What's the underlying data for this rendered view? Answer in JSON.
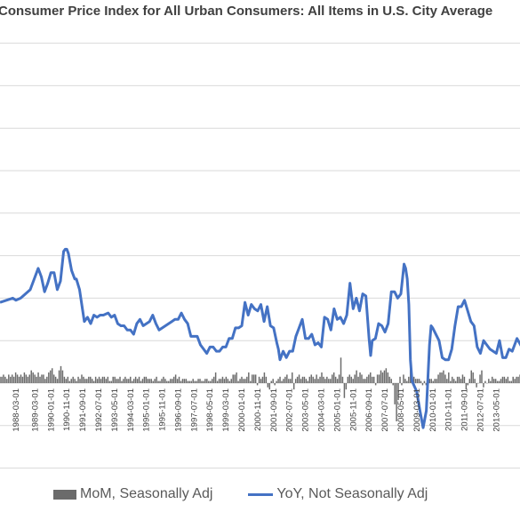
{
  "chart_data": {
    "type": "bar+line",
    "title": "Consumer Price Index for All Urban Consumers: All Items in U.S. City Average",
    "y_zero_gridline": true,
    "grid": "horizontal",
    "legend_position": "bottom",
    "colors": {
      "mom": "#6b6b6b",
      "yoy": "#4472c4",
      "grid": "#d9d9d9"
    },
    "x_tick_labels": [
      "1988-03-01",
      "1989-03-01",
      "1990-01-01",
      "1990-11-01",
      "1991-09-01",
      "1992-07-01",
      "1993-05-01",
      "1994-03-01",
      "1995-01-01",
      "1995-11-01",
      "1996-09-01",
      "1997-07-01",
      "1998-05-01",
      "1999-03-01",
      "2000-01-01",
      "2000-11-01",
      "2001-09-01",
      "2002-07-01",
      "2003-05-01",
      "2004-03-01",
      "2005-01-01",
      "2005-11-01",
      "2006-09-01",
      "2007-07-01",
      "2008-05-01",
      "2009-03-01",
      "2010-01-01",
      "2010-11-01",
      "2011-09-01",
      "2012-07-01",
      "2013-05-01"
    ],
    "series": [
      {
        "name": "MoM, Seasonally Adj",
        "kind": "bar",
        "x_start": "1987-05-01",
        "x_end": "2014-09-01",
        "values": [
          0.3,
          0.3,
          0.4,
          0.3,
          0.2,
          0.4,
          0.3,
          0.4,
          0.3,
          0.5,
          0.4,
          0.3,
          0.4,
          0.3,
          0.5,
          0.4,
          0.3,
          0.4,
          0.6,
          0.5,
          0.4,
          0.3,
          0.5,
          0.3,
          0.4,
          0.4,
          0.2,
          0.3,
          0.5,
          0.6,
          0.7,
          0.4,
          0.3,
          0.2,
          0.6,
          0.8,
          0.6,
          0.3,
          0.2,
          0.3,
          0.1,
          0.2,
          0.3,
          0.2,
          0.1,
          0.3,
          0.2,
          0.4,
          0.3,
          0.2,
          0.2,
          0.3,
          0.3,
          0.2,
          0.1,
          0.3,
          0.2,
          0.3,
          0.2,
          0.3,
          0.3,
          0.2,
          0.3,
          0.1,
          0.1,
          0.3,
          0.3,
          0.2,
          0.2,
          0.3,
          0.1,
          0.2,
          0.3,
          0.2,
          0.2,
          0.3,
          0.1,
          0.2,
          0.3,
          0.2,
          0.3,
          0.1,
          0.2,
          0.3,
          0.3,
          0.2,
          0.2,
          0.2,
          0.1,
          0.2,
          0.3,
          0.1,
          0.1,
          0.2,
          0.3,
          0.2,
          0.1,
          0.1,
          0.2,
          0.2,
          0.3,
          0.4,
          0.2,
          0.3,
          0.1,
          0.2,
          0.2,
          0.2,
          0.1,
          0.1,
          0.1,
          0.2,
          0.1,
          0.1,
          0.2,
          0.2,
          0.1,
          0.1,
          0.2,
          0.2,
          0.1,
          0.1,
          0.2,
          0.3,
          0.5,
          0.1,
          0.2,
          0.2,
          0.3,
          0.2,
          0.3,
          0.2,
          0.1,
          0.2,
          0.4,
          0.4,
          0.5,
          0.1,
          0.2,
          0.3,
          0.2,
          0.2,
          0.3,
          0.5,
          0.1,
          0.4,
          0.4,
          0.4,
          -0.1,
          0.3,
          0.2,
          0.3,
          0.5,
          0.3,
          -0.2,
          -0.3,
          0.1,
          0.2,
          -0.1,
          0.1,
          0.2,
          0.3,
          0.1,
          0.2,
          0.3,
          0.4,
          0.2,
          0.2,
          0.5,
          -0.3,
          0.2,
          0.3,
          0.4,
          0.2,
          0.3,
          0.3,
          0.2,
          0.1,
          0.3,
          0.4,
          0.3,
          0.2,
          0.4,
          0.2,
          0.3,
          0.5,
          0.3,
          0.2,
          0.3,
          0.2,
          0.2,
          0.4,
          0.5,
          0.3,
          0.2,
          0.4,
          1.2,
          0.3,
          -0.7,
          -0.3,
          0.3,
          0.4,
          0.3,
          0.2,
          0.4,
          0.6,
          0.3,
          0.5,
          0.4,
          0.2,
          0.2,
          0.3,
          0.4,
          0.5,
          0.3,
          0.3,
          -0.1,
          0.4,
          0.4,
          0.6,
          0.5,
          0.6,
          0.7,
          0.5,
          0.3,
          0.2,
          -0.1,
          -1.0,
          -1.8,
          -0.8,
          0.3,
          -0.1,
          0.4,
          0.2,
          0.1,
          0.3,
          0.8,
          0.1,
          0.3,
          0.2,
          0.2,
          0.2,
          0.1,
          -0.1,
          0.1,
          -0.1,
          -0.2,
          0.2,
          0.2,
          0.1,
          0.2,
          0.2,
          0.4,
          0.5,
          0.5,
          0.6,
          0.4,
          0.2,
          0.5,
          0.1,
          0.3,
          0.2,
          0.1,
          0.3,
          0.3,
          0.2,
          0.4,
          0.3,
          -0.3,
          -0.1,
          0.2,
          0.6,
          0.5,
          0.2,
          -0.2,
          0.0,
          0.4,
          0.6,
          -0.2,
          0.1,
          0.0,
          0.2,
          0.1,
          0.3,
          0.2,
          0.2,
          0.1,
          0.1,
          0.2,
          0.3,
          0.3,
          0.2,
          0.3,
          0.1,
          0.1,
          0.3,
          0.2,
          0.3,
          0.3,
          0.4,
          0.3
        ]
      },
      {
        "name": "YoY, Not Seasonally Adj",
        "kind": "line",
        "points": [
          [
            "1987-05-01",
            3.8
          ],
          [
            "1988-01-01",
            4.0
          ],
          [
            "1988-03-01",
            3.9
          ],
          [
            "1988-06-01",
            4.0
          ],
          [
            "1988-09-01",
            4.2
          ],
          [
            "1988-12-01",
            4.4
          ],
          [
            "1989-03-01",
            5.0
          ],
          [
            "1989-05-01",
            5.4
          ],
          [
            "1989-07-01",
            5.0
          ],
          [
            "1989-09-01",
            4.3
          ],
          [
            "1989-11-01",
            4.7
          ],
          [
            "1990-01-01",
            5.2
          ],
          [
            "1990-03-01",
            5.2
          ],
          [
            "1990-05-01",
            4.4
          ],
          [
            "1990-07-01",
            4.8
          ],
          [
            "1990-09-01",
            6.2
          ],
          [
            "1990-10-01",
            6.3
          ],
          [
            "1990-11-01",
            6.3
          ],
          [
            "1990-12-01",
            6.1
          ],
          [
            "1991-02-01",
            5.3
          ],
          [
            "1991-04-01",
            4.9
          ],
          [
            "1991-05-01",
            4.9
          ],
          [
            "1991-07-01",
            4.4
          ],
          [
            "1991-09-01",
            3.4
          ],
          [
            "1991-10-01",
            2.9
          ],
          [
            "1991-12-01",
            3.1
          ],
          [
            "1992-02-01",
            2.8
          ],
          [
            "1992-04-01",
            3.2
          ],
          [
            "1992-06-01",
            3.1
          ],
          [
            "1992-08-01",
            3.2
          ],
          [
            "1992-10-01",
            3.2
          ],
          [
            "1993-01-01",
            3.3
          ],
          [
            "1993-03-01",
            3.1
          ],
          [
            "1993-05-01",
            3.2
          ],
          [
            "1993-07-01",
            2.8
          ],
          [
            "1993-09-01",
            2.7
          ],
          [
            "1993-11-01",
            2.7
          ],
          [
            "1994-01-01",
            2.5
          ],
          [
            "1994-03-01",
            2.5
          ],
          [
            "1994-05-01",
            2.3
          ],
          [
            "1994-07-01",
            2.8
          ],
          [
            "1994-09-01",
            3.0
          ],
          [
            "1994-11-01",
            2.7
          ],
          [
            "1995-01-01",
            2.8
          ],
          [
            "1995-03-01",
            2.9
          ],
          [
            "1995-05-01",
            3.2
          ],
          [
            "1995-07-01",
            2.8
          ],
          [
            "1995-09-01",
            2.5
          ],
          [
            "1995-11-01",
            2.6
          ],
          [
            "1996-01-01",
            2.7
          ],
          [
            "1996-03-01",
            2.8
          ],
          [
            "1996-05-01",
            2.9
          ],
          [
            "1996-07-01",
            3.0
          ],
          [
            "1996-09-01",
            3.0
          ],
          [
            "1996-11-01",
            3.3
          ],
          [
            "1997-01-01",
            3.0
          ],
          [
            "1997-03-01",
            2.8
          ],
          [
            "1997-05-01",
            2.2
          ],
          [
            "1997-07-01",
            2.2
          ],
          [
            "1997-09-01",
            2.2
          ],
          [
            "1997-11-01",
            1.8
          ],
          [
            "1998-01-01",
            1.6
          ],
          [
            "1998-03-01",
            1.4
          ],
          [
            "1998-05-01",
            1.7
          ],
          [
            "1998-07-01",
            1.7
          ],
          [
            "1998-09-01",
            1.5
          ],
          [
            "1998-11-01",
            1.5
          ],
          [
            "1999-01-01",
            1.7
          ],
          [
            "1999-03-01",
            1.7
          ],
          [
            "1999-05-01",
            2.1
          ],
          [
            "1999-07-01",
            2.1
          ],
          [
            "1999-09-01",
            2.6
          ],
          [
            "1999-11-01",
            2.6
          ],
          [
            "2000-01-01",
            2.7
          ],
          [
            "2000-03-01",
            3.8
          ],
          [
            "2000-05-01",
            3.2
          ],
          [
            "2000-07-01",
            3.7
          ],
          [
            "2000-09-01",
            3.5
          ],
          [
            "2000-11-01",
            3.4
          ],
          [
            "2001-01-01",
            3.7
          ],
          [
            "2001-03-01",
            2.9
          ],
          [
            "2001-05-01",
            3.6
          ],
          [
            "2001-07-01",
            2.7
          ],
          [
            "2001-09-01",
            2.6
          ],
          [
            "2001-11-01",
            1.9
          ],
          [
            "2001-12-01",
            1.6
          ],
          [
            "2002-01-01",
            1.1
          ],
          [
            "2002-03-01",
            1.5
          ],
          [
            "2002-05-01",
            1.2
          ],
          [
            "2002-07-01",
            1.5
          ],
          [
            "2002-09-01",
            1.5
          ],
          [
            "2002-11-01",
            2.2
          ],
          [
            "2003-01-01",
            2.6
          ],
          [
            "2003-03-01",
            3.0
          ],
          [
            "2003-05-01",
            2.1
          ],
          [
            "2003-07-01",
            2.1
          ],
          [
            "2003-09-01",
            2.3
          ],
          [
            "2003-11-01",
            1.8
          ],
          [
            "2004-01-01",
            1.9
          ],
          [
            "2004-03-01",
            1.7
          ],
          [
            "2004-05-01",
            3.1
          ],
          [
            "2004-07-01",
            3.0
          ],
          [
            "2004-09-01",
            2.5
          ],
          [
            "2004-11-01",
            3.5
          ],
          [
            "2005-01-01",
            3.0
          ],
          [
            "2005-03-01",
            3.1
          ],
          [
            "2005-05-01",
            2.8
          ],
          [
            "2005-07-01",
            3.2
          ],
          [
            "2005-09-01",
            4.7
          ],
          [
            "2005-11-01",
            3.5
          ],
          [
            "2006-01-01",
            4.0
          ],
          [
            "2006-03-01",
            3.4
          ],
          [
            "2006-05-01",
            4.2
          ],
          [
            "2006-07-01",
            4.1
          ],
          [
            "2006-09-01",
            2.1
          ],
          [
            "2006-10-01",
            1.3
          ],
          [
            "2006-11-01",
            2.0
          ],
          [
            "2007-01-01",
            2.1
          ],
          [
            "2007-03-01",
            2.8
          ],
          [
            "2007-05-01",
            2.7
          ],
          [
            "2007-07-01",
            2.4
          ],
          [
            "2007-09-01",
            2.8
          ],
          [
            "2007-11-01",
            4.3
          ],
          [
            "2008-01-01",
            4.3
          ],
          [
            "2008-03-01",
            4.0
          ],
          [
            "2008-05-01",
            4.2
          ],
          [
            "2008-07-01",
            5.6
          ],
          [
            "2008-08-01",
            5.4
          ],
          [
            "2008-09-01",
            4.9
          ],
          [
            "2008-10-01",
            3.7
          ],
          [
            "2008-11-01",
            1.1
          ],
          [
            "2008-12-01",
            0.1
          ],
          [
            "2009-03-01",
            -0.4
          ],
          [
            "2009-05-01",
            -1.3
          ],
          [
            "2009-07-01",
            -2.1
          ],
          [
            "2009-09-01",
            -1.3
          ],
          [
            "2009-11-01",
            1.8
          ],
          [
            "2009-12-01",
            2.7
          ],
          [
            "2010-01-01",
            2.6
          ],
          [
            "2010-03-01",
            2.3
          ],
          [
            "2010-05-01",
            2.0
          ],
          [
            "2010-07-01",
            1.2
          ],
          [
            "2010-09-01",
            1.1
          ],
          [
            "2010-11-01",
            1.1
          ],
          [
            "2011-01-01",
            1.6
          ],
          [
            "2011-03-01",
            2.7
          ],
          [
            "2011-05-01",
            3.6
          ],
          [
            "2011-07-01",
            3.6
          ],
          [
            "2011-09-01",
            3.9
          ],
          [
            "2011-11-01",
            3.4
          ],
          [
            "2012-01-01",
            2.9
          ],
          [
            "2012-03-01",
            2.7
          ],
          [
            "2012-05-01",
            1.7
          ],
          [
            "2012-07-01",
            1.4
          ],
          [
            "2012-09-01",
            2.0
          ],
          [
            "2012-11-01",
            1.8
          ],
          [
            "2013-01-01",
            1.6
          ],
          [
            "2013-03-01",
            1.5
          ],
          [
            "2013-05-01",
            1.4
          ],
          [
            "2013-07-01",
            2.0
          ],
          [
            "2013-09-01",
            1.2
          ],
          [
            "2013-11-01",
            1.2
          ],
          [
            "2014-01-01",
            1.6
          ],
          [
            "2014-03-01",
            1.5
          ],
          [
            "2014-06-01",
            2.1
          ],
          [
            "2014-09-01",
            1.7
          ]
        ]
      }
    ]
  }
}
